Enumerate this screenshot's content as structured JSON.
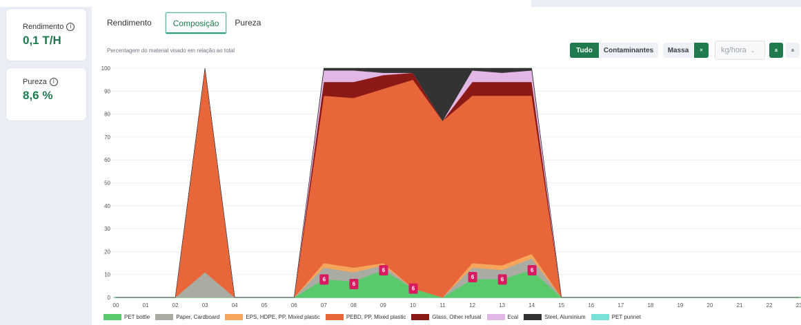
{
  "kpis": [
    {
      "label": "Rendimento",
      "value": "0,1 T/H"
    },
    {
      "label": "Pureza",
      "value": "8,6 %"
    }
  ],
  "tabs": [
    "Rendimento",
    "Composição",
    "Pureza"
  ],
  "active_tab": "Composição",
  "subtitle": "Percentagem do material visado em relação ao total",
  "controls": {
    "tudo": "Tudo",
    "contaminantes": "Contaminantes",
    "massa": "Massa",
    "x_label": "×",
    "unit_value": "kg/hora",
    "chevron": "⌄",
    "btn_a": "a",
    "btn_b": "a"
  },
  "colors": {
    "PET bottle": "#5ac96b",
    "Paper, Cardboard": "#aaaba3",
    "EPS, HDPE, PP, Mixed plastic": "#f5a65b",
    "PEBD, PP, Mixed plastic": "#e8673a",
    "Glass, Other refusal": "#8b1a16",
    "Ecal": "#e2b7e6",
    "Steel, Aluminium": "#333333",
    "PET punnet": "#78e1d8",
    "marker": "#d81b60"
  },
  "chart_data": {
    "type": "area",
    "stacked": true,
    "x": [
      "00",
      "01",
      "02",
      "03",
      "04",
      "05",
      "06",
      "07",
      "08",
      "09",
      "10",
      "11",
      "12",
      "13",
      "14",
      "15",
      "16",
      "17",
      "18",
      "19",
      "20",
      "21",
      "22",
      "23"
    ],
    "ylim": [
      0,
      100
    ],
    "yticks": [
      0,
      10,
      20,
      30,
      40,
      50,
      60,
      70,
      80,
      90,
      100
    ],
    "grid": true,
    "legend_position": "bottom",
    "series": [
      {
        "name": "PET bottle",
        "values": [
          0,
          0,
          0,
          0,
          0,
          0,
          0,
          8,
          7,
          12,
          4,
          0,
          8,
          8,
          12,
          0,
          0,
          0,
          0,
          0,
          0,
          0,
          0,
          0
        ]
      },
      {
        "name": "Paper, Cardboard",
        "values": [
          0,
          0,
          0,
          11,
          0,
          0,
          0,
          5,
          4,
          2,
          0,
          0,
          5,
          4,
          5,
          0,
          0,
          0,
          0,
          0,
          0,
          0,
          0,
          0
        ]
      },
      {
        "name": "EPS, HDPE, PP, Mixed plastic",
        "values": [
          0,
          0,
          0,
          0,
          0,
          0,
          0,
          2,
          2,
          1,
          0,
          0,
          2,
          2,
          2,
          0,
          0,
          0,
          0,
          0,
          0,
          0,
          0,
          0
        ]
      },
      {
        "name": "PEBD, PP, Mixed plastic",
        "values": [
          0,
          0,
          0,
          89,
          0,
          0,
          0,
          73,
          74,
          76,
          91,
          77,
          73,
          74,
          69,
          0,
          0,
          0,
          0,
          0,
          0,
          0,
          0,
          0
        ]
      },
      {
        "name": "Glass, Other refusal",
        "values": [
          0,
          0,
          0,
          0,
          0,
          0,
          0,
          6,
          7,
          6,
          3,
          0,
          6,
          6,
          6,
          0,
          0,
          0,
          0,
          0,
          0,
          0,
          0,
          0
        ]
      },
      {
        "name": "Ecal",
        "values": [
          0,
          0,
          0,
          0,
          0,
          0,
          0,
          5,
          5,
          1,
          0,
          0,
          5,
          4,
          5,
          0,
          0,
          0,
          0,
          0,
          0,
          0,
          0,
          0
        ]
      },
      {
        "name": "Steel, Aluminium",
        "values": [
          0,
          0,
          0,
          0,
          0,
          0,
          0,
          1,
          1,
          2,
          2,
          23,
          1,
          2,
          1,
          0,
          0,
          0,
          0,
          0,
          0,
          0,
          0,
          0
        ]
      },
      {
        "name": "PET punnet",
        "values": [
          0,
          0,
          0,
          0,
          0,
          0,
          0,
          0,
          0,
          0,
          0,
          0,
          0,
          0,
          0,
          0,
          0,
          0,
          0,
          0,
          0,
          0,
          0,
          0
        ]
      }
    ],
    "markers": [
      {
        "x": "07",
        "y": 8,
        "label": "6"
      },
      {
        "x": "08",
        "y": 6,
        "label": "6"
      },
      {
        "x": "09",
        "y": 12,
        "label": "6"
      },
      {
        "x": "10",
        "y": 4,
        "label": "6"
      },
      {
        "x": "12",
        "y": 9,
        "label": "6"
      },
      {
        "x": "13",
        "y": 8,
        "label": "6"
      },
      {
        "x": "14",
        "y": 12,
        "label": "6"
      }
    ]
  }
}
